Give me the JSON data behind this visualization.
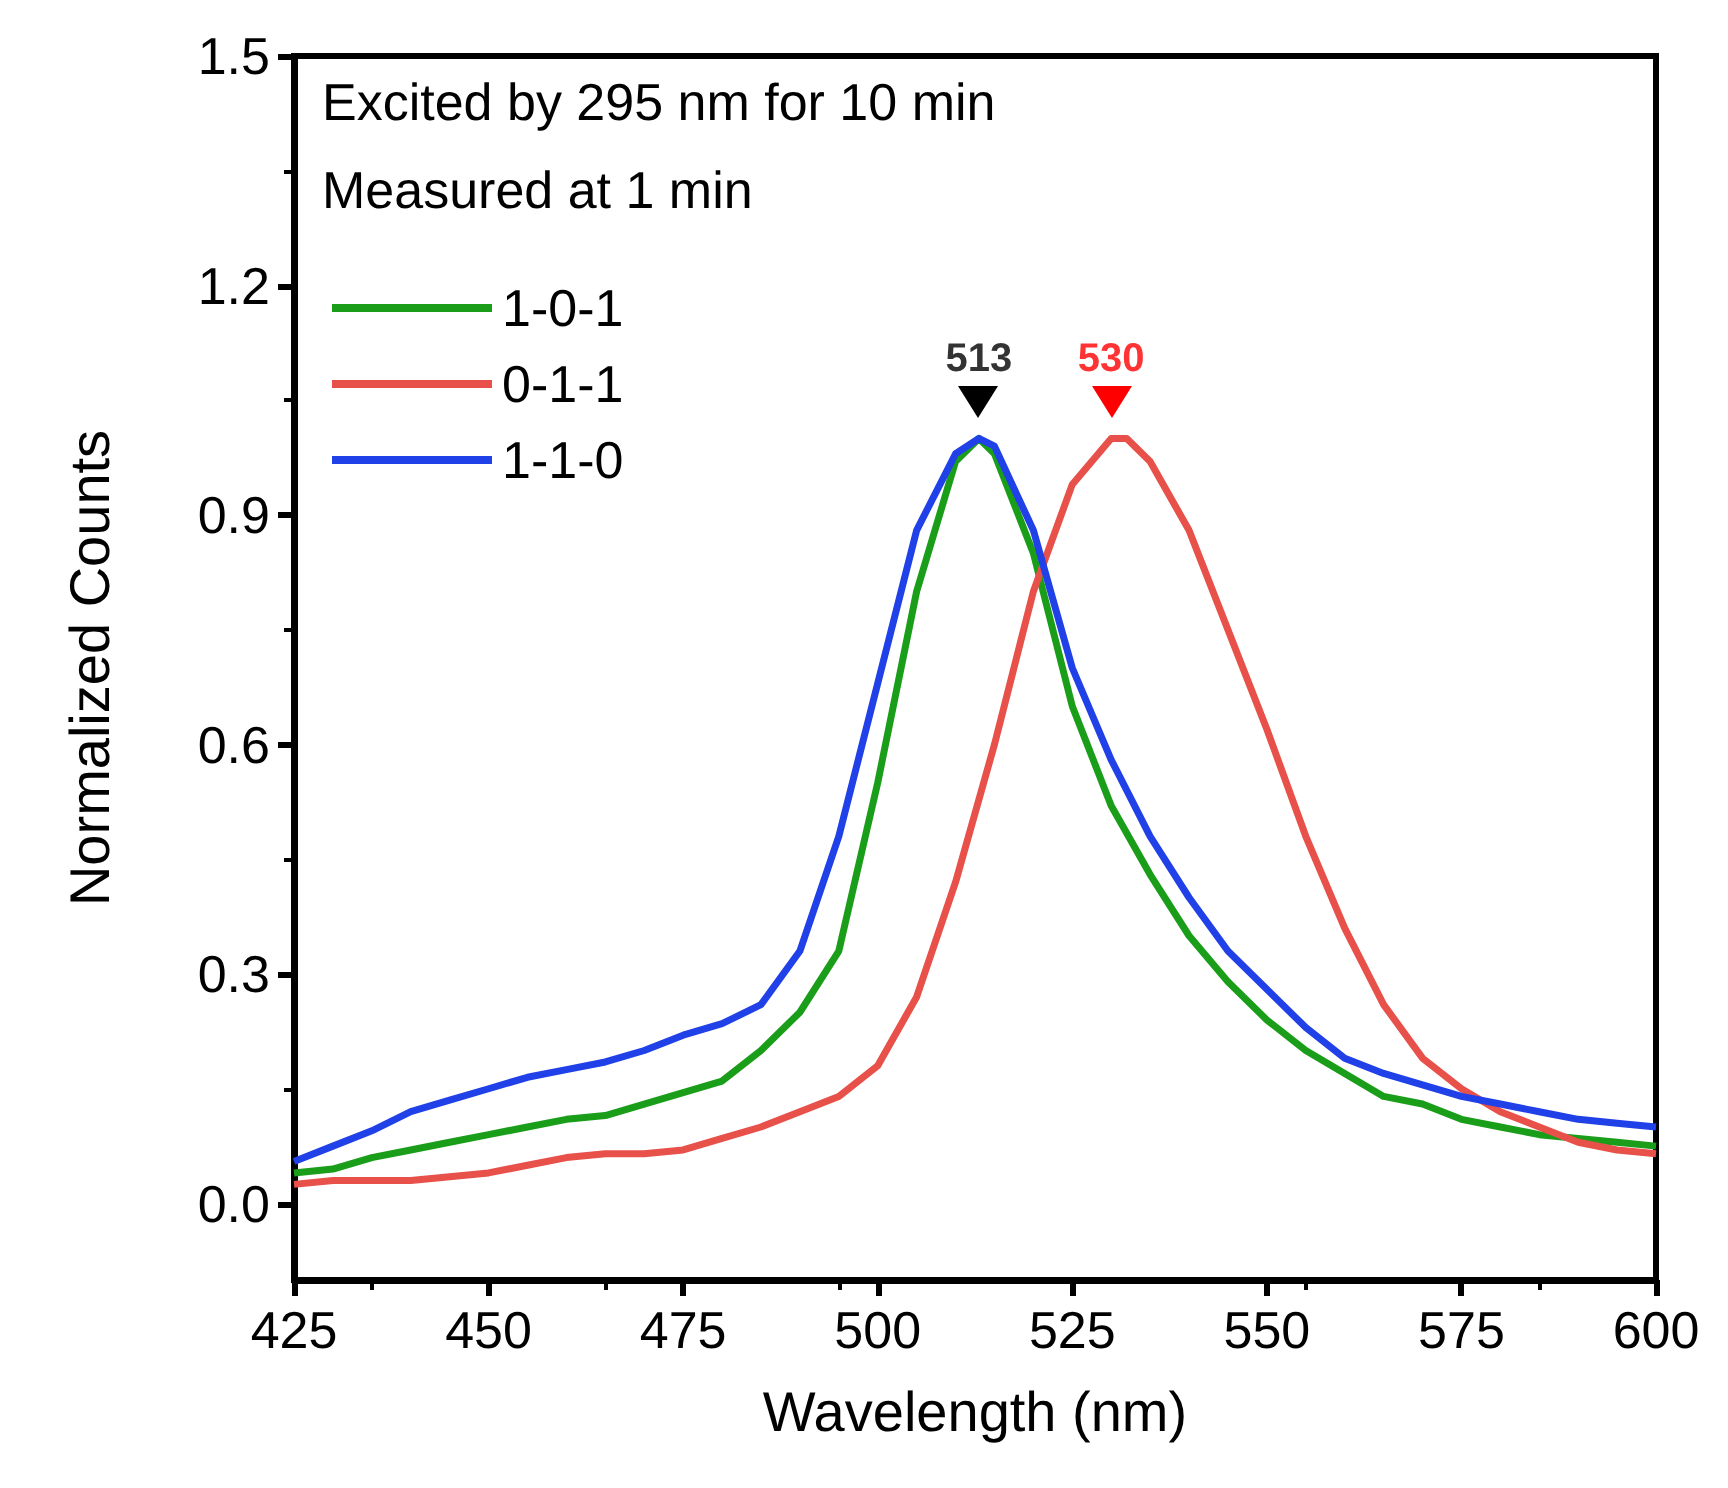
{
  "chart_data": {
    "type": "line",
    "xlabel": "Wavelength (nm)",
    "ylabel": "Normalized Counts",
    "xlim": [
      425,
      600
    ],
    "xticks": [
      425,
      450,
      475,
      500,
      525,
      550,
      575,
      600
    ],
    "ylim": [
      -0.1,
      1.5
    ],
    "yticks": [
      {
        "value": 0,
        "label": "0.0"
      },
      0.3,
      0.6,
      0.9,
      1.2,
      1.5
    ],
    "grid": false,
    "legend": "top left",
    "marker": "none",
    "line_style": "solid",
    "annotations": [
      "Excited by 295 nm for 10 min",
      "Measured at 1 min",
      {
        "text": "513",
        "x": 513,
        "y": 1.0
      },
      {
        "text": "530",
        "x": 530,
        "y": 1.0
      }
    ],
    "series": [
      {
        "name": "1-0-1",
        "color": "#1a9e1a",
        "x": [
          425,
          430,
          435,
          440,
          445,
          450,
          455,
          460,
          465,
          470,
          475,
          480,
          485,
          490,
          495,
          500,
          505,
          510,
          513,
          515,
          520,
          525,
          530,
          535,
          540,
          545,
          550,
          555,
          560,
          565,
          570,
          575,
          580,
          585,
          590,
          595,
          600
        ],
        "values": [
          0.04,
          0.045,
          0.06,
          0.07,
          0.08,
          0.09,
          0.1,
          0.11,
          0.115,
          0.13,
          0.145,
          0.16,
          0.2,
          0.25,
          0.33,
          0.55,
          0.8,
          0.97,
          1.0,
          0.98,
          0.85,
          0.65,
          0.52,
          0.43,
          0.35,
          0.29,
          0.24,
          0.2,
          0.17,
          0.14,
          0.13,
          0.11,
          0.1,
          0.09,
          0.085,
          0.08,
          0.075
        ]
      },
      {
        "name": "0-1-1",
        "color": "#e8504a",
        "x": [
          425,
          430,
          435,
          440,
          445,
          450,
          455,
          460,
          465,
          470,
          475,
          480,
          485,
          490,
          495,
          500,
          505,
          510,
          515,
          520,
          525,
          530,
          532,
          535,
          540,
          545,
          550,
          555,
          560,
          565,
          570,
          575,
          580,
          585,
          590,
          595,
          600
        ],
        "values": [
          0.025,
          0.03,
          0.03,
          0.03,
          0.035,
          0.04,
          0.05,
          0.06,
          0.065,
          0.065,
          0.07,
          0.085,
          0.1,
          0.12,
          0.14,
          0.18,
          0.27,
          0.42,
          0.6,
          0.8,
          0.94,
          1.0,
          1.0,
          0.97,
          0.88,
          0.75,
          0.62,
          0.48,
          0.36,
          0.26,
          0.19,
          0.15,
          0.12,
          0.1,
          0.08,
          0.07,
          0.065
        ]
      },
      {
        "name": "1-1-0",
        "color": "#2040e8",
        "x": [
          425,
          430,
          435,
          440,
          445,
          450,
          455,
          460,
          465,
          470,
          475,
          480,
          485,
          490,
          495,
          500,
          505,
          510,
          513,
          515,
          520,
          525,
          530,
          535,
          540,
          545,
          550,
          555,
          560,
          565,
          570,
          575,
          580,
          585,
          590,
          595,
          600
        ],
        "values": [
          0.055,
          0.075,
          0.095,
          0.12,
          0.135,
          0.15,
          0.165,
          0.175,
          0.185,
          0.2,
          0.22,
          0.235,
          0.26,
          0.33,
          0.48,
          0.68,
          0.88,
          0.98,
          1.0,
          0.99,
          0.88,
          0.7,
          0.58,
          0.48,
          0.4,
          0.33,
          0.28,
          0.23,
          0.19,
          0.17,
          0.155,
          0.14,
          0.13,
          0.12,
          0.11,
          0.105,
          0.1
        ]
      }
    ]
  }
}
